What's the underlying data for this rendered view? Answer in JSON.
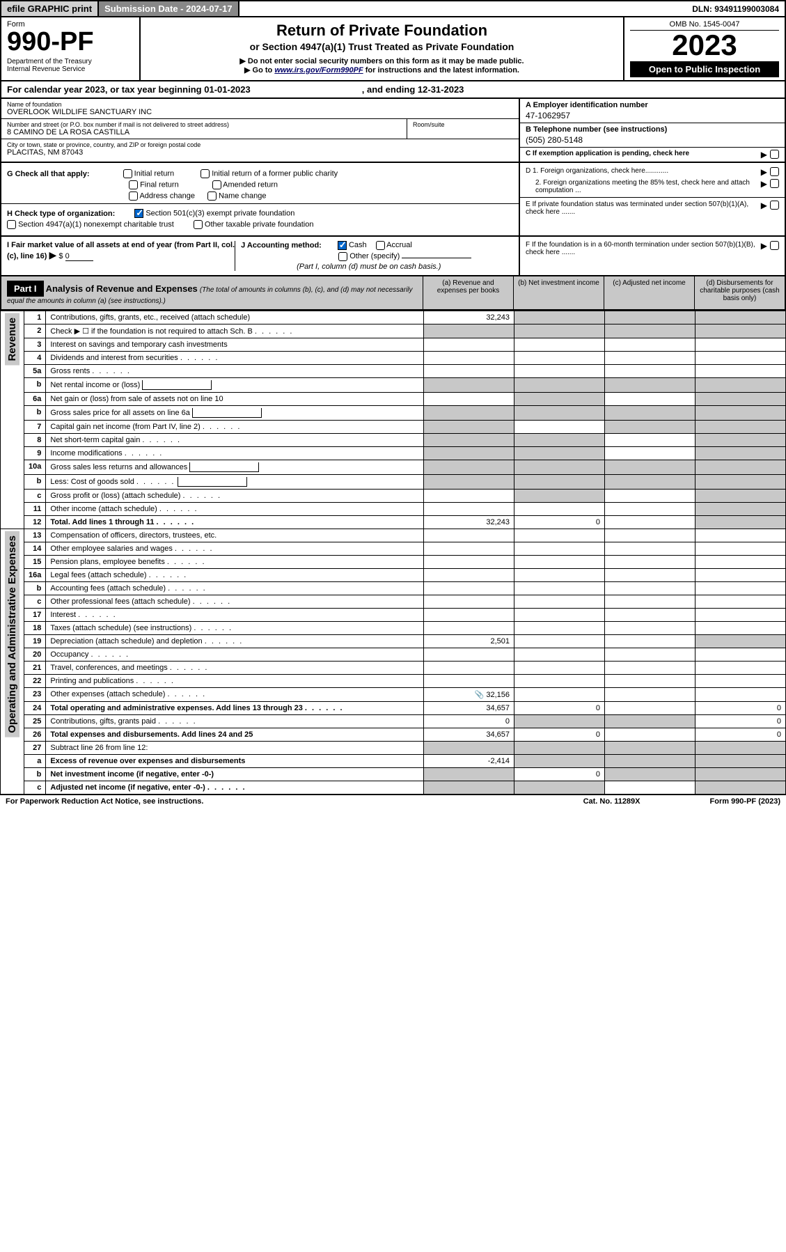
{
  "colors": {
    "header_gray": "#c8c8c8",
    "dark_gray": "#888888",
    "light_gray": "#d0d0d0",
    "checkbox_blue": "#0066cc",
    "link_blue": "#000066"
  },
  "top_bar": {
    "efile": "efile GRAPHIC print",
    "submission": "Submission Date - 2024-07-17",
    "dln": "DLN: 93491199003084"
  },
  "header": {
    "form_label": "Form",
    "form_number": "990-PF",
    "dept": "Department of the Treasury",
    "irs": "Internal Revenue Service",
    "title": "Return of Private Foundation",
    "subtitle": "or Section 4947(a)(1) Trust Treated as Private Foundation",
    "note1": "▶ Do not enter social security numbers on this form as it may be made public.",
    "note2_prefix": "▶ Go to ",
    "note2_link": "www.irs.gov/Form990PF",
    "note2_suffix": " for instructions and the latest information.",
    "omb": "OMB No. 1545-0047",
    "year": "2023",
    "open_public": "Open to Public Inspection"
  },
  "cal_year": {
    "prefix": "For calendar year 2023, or tax year beginning ",
    "begin_date": "01-01-2023",
    "middle": ", and ending ",
    "end_date": "12-31-2023"
  },
  "foundation": {
    "name_label": "Name of foundation",
    "name": "OVERLOOK WILDLIFE SANCTUARY INC",
    "address_label": "Number and street (or P.O. box number if mail is not delivered to street address)",
    "address": "8 CAMINO DE LA ROSA CASTILLA",
    "room_label": "Room/suite",
    "city_label": "City or town, state or province, country, and ZIP or foreign postal code",
    "city": "PLACITAS, NM  87043",
    "ein_label": "A Employer identification number",
    "ein": "47-1062957",
    "phone_label": "B Telephone number (see instructions)",
    "phone": "(505) 280-5148",
    "c_label": "C If exemption application is pending, check here"
  },
  "section_g": {
    "label": "G Check all that apply:",
    "initial_return": "Initial return",
    "initial_former": "Initial return of a former public charity",
    "final_return": "Final return",
    "amended_return": "Amended return",
    "address_change": "Address change",
    "name_change": "Name change"
  },
  "section_h": {
    "label": "H Check type of organization:",
    "opt1": "Section 501(c)(3) exempt private foundation",
    "opt2": "Section 4947(a)(1) nonexempt charitable trust",
    "opt3": "Other taxable private foundation"
  },
  "section_d": {
    "d1": "D 1. Foreign organizations, check here............",
    "d2": "2. Foreign organizations meeting the 85% test, check here and attach computation ...",
    "e": "E  If private foundation status was terminated under section 507(b)(1)(A), check here .......",
    "f": "F  If the foundation is in a 60-month termination under section 507(b)(1)(B), check here ......."
  },
  "section_i": {
    "label": "I Fair market value of all assets at end of year (from Part II, col. (c), line 16)",
    "arrow": "▶",
    "prefix": "$",
    "value": "0"
  },
  "section_j": {
    "label": "J Accounting method:",
    "cash": "Cash",
    "accrual": "Accrual",
    "other": "Other (specify)",
    "note": "(Part I, column (d) must be on cash basis.)"
  },
  "part1": {
    "label": "Part I",
    "title": "Analysis of Revenue and Expenses",
    "note": "(The total of amounts in columns (b), (c), and (d) may not necessarily equal the amounts in column (a) (see instructions).)",
    "col_a": "(a)  Revenue and expenses per books",
    "col_b": "(b)  Net investment income",
    "col_c": "(c)  Adjusted net income",
    "col_d": "(d)  Disbursements for charitable purposes (cash basis only)"
  },
  "side_labels": {
    "revenue": "Revenue",
    "expenses": "Operating and Administrative Expenses"
  },
  "rows": [
    {
      "num": "1",
      "desc": "Contributions, gifts, grants, etc., received (attach schedule)",
      "a": "32,243",
      "b_shaded": true,
      "c_shaded": true,
      "d_shaded": true
    },
    {
      "num": "2",
      "desc": "Check ▶ ☐ if the foundation is not required to attach Sch. B",
      "dots": true,
      "a_shaded": true,
      "b_shaded": true,
      "c_shaded": true,
      "d_shaded": true
    },
    {
      "num": "3",
      "desc": "Interest on savings and temporary cash investments"
    },
    {
      "num": "4",
      "desc": "Dividends and interest from securities",
      "dots": true
    },
    {
      "num": "5a",
      "desc": "Gross rents",
      "dots": true
    },
    {
      "num": "b",
      "desc": "Net rental income or (loss)",
      "inline_box": true,
      "a_shaded": true,
      "b_shaded": true,
      "c_shaded": true,
      "d_shaded": true
    },
    {
      "num": "6a",
      "desc": "Net gain or (loss) from sale of assets not on line 10",
      "b_shaded": true,
      "d_shaded": true
    },
    {
      "num": "b",
      "desc": "Gross sales price for all assets on line 6a",
      "inline_box": true,
      "a_shaded": true,
      "b_shaded": true,
      "c_shaded": true,
      "d_shaded": true
    },
    {
      "num": "7",
      "desc": "Capital gain net income (from Part IV, line 2)",
      "dots": true,
      "a_shaded": true,
      "c_shaded": true,
      "d_shaded": true
    },
    {
      "num": "8",
      "desc": "Net short-term capital gain",
      "dots": true,
      "a_shaded": true,
      "b_shaded": true,
      "d_shaded": true
    },
    {
      "num": "9",
      "desc": "Income modifications",
      "dots": true,
      "a_shaded": true,
      "b_shaded": true,
      "d_shaded": true
    },
    {
      "num": "10a",
      "desc": "Gross sales less returns and allowances",
      "inline_box": true,
      "a_shaded": true,
      "b_shaded": true,
      "c_shaded": true,
      "d_shaded": true
    },
    {
      "num": "b",
      "desc": "Less: Cost of goods sold",
      "dots": true,
      "inline_box": true,
      "a_shaded": true,
      "b_shaded": true,
      "c_shaded": true,
      "d_shaded": true
    },
    {
      "num": "c",
      "desc": "Gross profit or (loss) (attach schedule)",
      "dots": true,
      "b_shaded": true,
      "d_shaded": true
    },
    {
      "num": "11",
      "desc": "Other income (attach schedule)",
      "dots": true,
      "d_shaded": true
    },
    {
      "num": "12",
      "desc": "Total. Add lines 1 through 11",
      "dots": true,
      "bold": true,
      "a": "32,243",
      "b": "0",
      "d_shaded": true
    }
  ],
  "expense_rows": [
    {
      "num": "13",
      "desc": "Compensation of officers, directors, trustees, etc."
    },
    {
      "num": "14",
      "desc": "Other employee salaries and wages",
      "dots": true
    },
    {
      "num": "15",
      "desc": "Pension plans, employee benefits",
      "dots": true
    },
    {
      "num": "16a",
      "desc": "Legal fees (attach schedule)",
      "dots": true
    },
    {
      "num": "b",
      "desc": "Accounting fees (attach schedule)",
      "dots": true
    },
    {
      "num": "c",
      "desc": "Other professional fees (attach schedule)",
      "dots": true
    },
    {
      "num": "17",
      "desc": "Interest",
      "dots": true
    },
    {
      "num": "18",
      "desc": "Taxes (attach schedule) (see instructions)",
      "dots": true
    },
    {
      "num": "19",
      "desc": "Depreciation (attach schedule) and depletion",
      "dots": true,
      "a": "2,501",
      "d_shaded": true
    },
    {
      "num": "20",
      "desc": "Occupancy",
      "dots": true
    },
    {
      "num": "21",
      "desc": "Travel, conferences, and meetings",
      "dots": true
    },
    {
      "num": "22",
      "desc": "Printing and publications",
      "dots": true
    },
    {
      "num": "23",
      "desc": "Other expenses (attach schedule)",
      "dots": true,
      "a": "32,156",
      "a_icon": true
    },
    {
      "num": "24",
      "desc": "Total operating and administrative expenses. Add lines 13 through 23",
      "dots": true,
      "bold": true,
      "a": "34,657",
      "b": "0",
      "d": "0"
    },
    {
      "num": "25",
      "desc": "Contributions, gifts, grants paid",
      "dots": true,
      "a": "0",
      "b_shaded": true,
      "c_shaded": true,
      "d": "0"
    },
    {
      "num": "26",
      "desc": "Total expenses and disbursements. Add lines 24 and 25",
      "bold": true,
      "a": "34,657",
      "b": "0",
      "d": "0"
    },
    {
      "num": "27",
      "desc": "Subtract line 26 from line 12:",
      "a_shaded": true,
      "b_shaded": true,
      "c_shaded": true,
      "d_shaded": true
    },
    {
      "num": "a",
      "desc": "Excess of revenue over expenses and disbursements",
      "bold": true,
      "a": "-2,414",
      "b_shaded": true,
      "c_shaded": true,
      "d_shaded": true
    },
    {
      "num": "b",
      "desc": "Net investment income (if negative, enter -0-)",
      "bold": true,
      "a_shaded": true,
      "b": "0",
      "c_shaded": true,
      "d_shaded": true
    },
    {
      "num": "c",
      "desc": "Adjusted net income (if negative, enter -0-)",
      "bold": true,
      "dots": true,
      "a_shaded": true,
      "b_shaded": true,
      "d_shaded": true
    }
  ],
  "footer": {
    "paperwork": "For Paperwork Reduction Act Notice, see instructions.",
    "cat": "Cat. No. 11289X",
    "form": "Form 990-PF (2023)"
  }
}
